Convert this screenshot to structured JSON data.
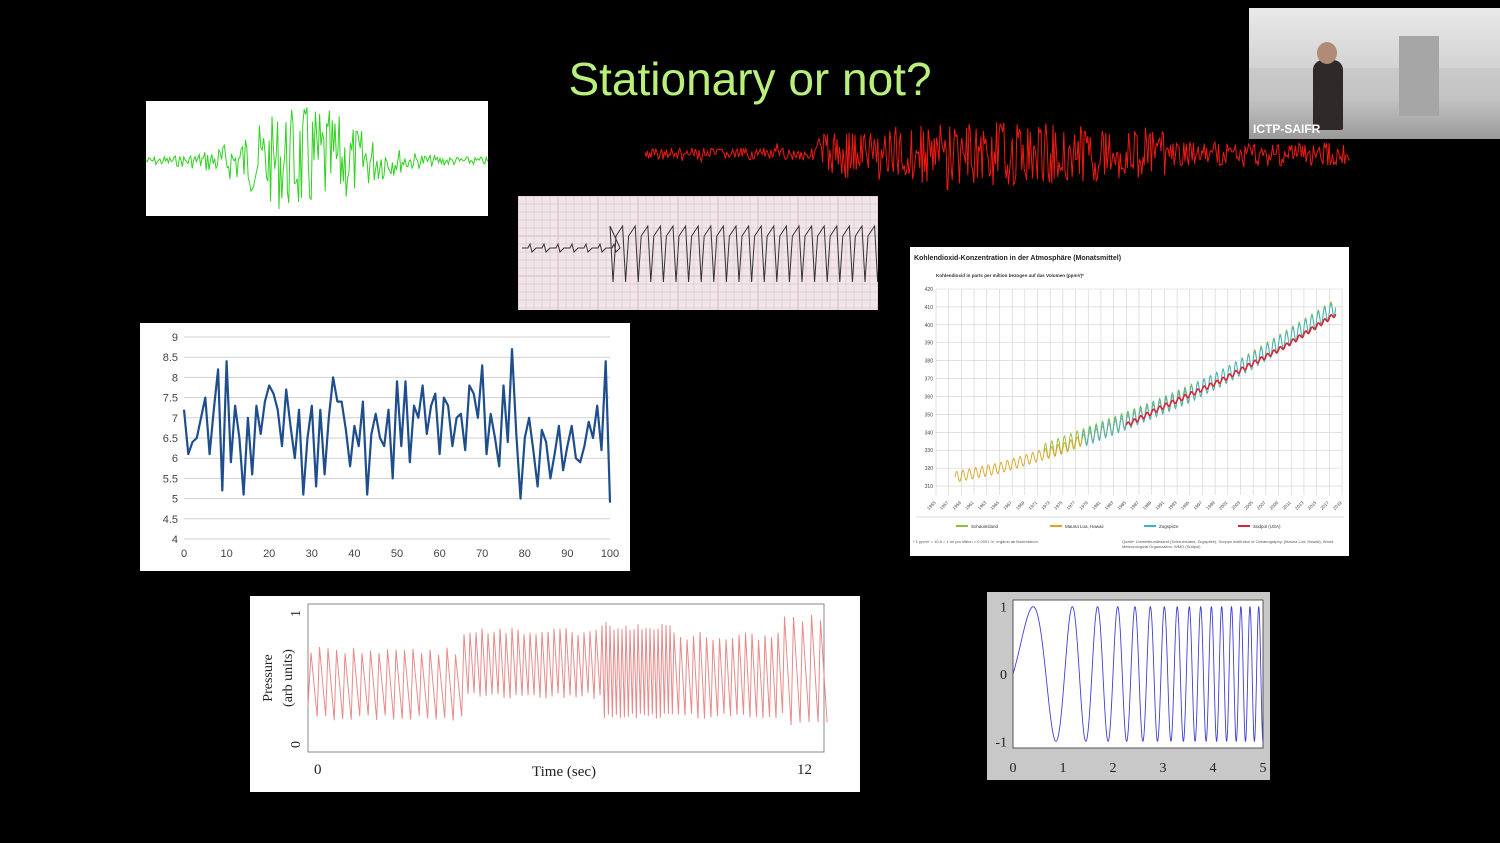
{
  "slide": {
    "title": "Stationary or not?"
  },
  "webcam": {
    "label": "ICTP-SAIFR"
  },
  "co2_chart": {
    "title": "Kohlendioxid-Konzentration in der Atmosphäre (Monatsmittel)",
    "subtitle": "Kohlendioxid in parts per million bezogen auf das Volumen (ppmV)*",
    "legend": [
      "Schauinsland",
      "Mauna Loa, Hawaii",
      "Zugspitze",
      "Südpol (USA)"
    ],
    "footnote": "* 1 ppmV = 10-6 = 1 ml pro Millon = 0,0001 %, ergänzt ab Bodenstrom",
    "source": "Quelle: Umweltbundesamt (Schauinsland, Zugspitze), Scripps Institution of Oceanography, (Mauna Loa, Hawaii), World Meteorological Organization, WMO (Südpol)"
  },
  "chart_data": [
    {
      "type": "line",
      "title": "",
      "x_ticks": [
        "0",
        "10",
        "20",
        "30",
        "40",
        "50",
        "60",
        "70",
        "80",
        "90",
        "100"
      ],
      "y_ticks": [
        "4",
        "4.5",
        "5",
        "5.5",
        "6",
        "6.5",
        "7",
        "7.5",
        "8",
        "8.5",
        "9"
      ],
      "xlim": [
        0,
        100
      ],
      "ylim": [
        4,
        9
      ],
      "series": [
        {
          "color": "#1f4e8c",
          "x": [
            0,
            1,
            2,
            3,
            4,
            5,
            6,
            7,
            8,
            9,
            10,
            11,
            12,
            13,
            14,
            15,
            16,
            17,
            18,
            19,
            20,
            21,
            22,
            23,
            24,
            25,
            26,
            27,
            28,
            29,
            30,
            31,
            32,
            33,
            34,
            35,
            36,
            37,
            38,
            39,
            40,
            41,
            42,
            43,
            44,
            45,
            46,
            47,
            48,
            49,
            50,
            51,
            52,
            53,
            54,
            55,
            56,
            57,
            58,
            59,
            60,
            61,
            62,
            63,
            64,
            65,
            66,
            67,
            68,
            69,
            70,
            71,
            72,
            73,
            74,
            75,
            76,
            77,
            78,
            79,
            80,
            81,
            82,
            83,
            84,
            85,
            86,
            87,
            88,
            89,
            90,
            91,
            92,
            93,
            94,
            95,
            96,
            97,
            98,
            99,
            100
          ],
          "y": [
            7.2,
            6.1,
            6.4,
            6.5,
            7.0,
            7.5,
            6.1,
            7.2,
            8.2,
            5.2,
            8.4,
            5.9,
            7.3,
            6.5,
            5.1,
            7.0,
            5.6,
            7.3,
            6.6,
            7.4,
            7.8,
            7.6,
            7.2,
            6.3,
            7.7,
            6.8,
            6.0,
            7.2,
            5.1,
            6.5,
            7.3,
            5.3,
            7.2,
            5.6,
            7.0,
            8.0,
            7.4,
            7.4,
            6.7,
            5.8,
            6.8,
            6.3,
            7.4,
            5.1,
            6.6,
            7.1,
            6.5,
            6.3,
            7.2,
            5.5,
            7.9,
            6.3,
            7.9,
            5.9,
            7.3,
            7.0,
            7.8,
            6.6,
            7.3,
            7.6,
            6.1,
            7.5,
            7.3,
            6.3,
            7.0,
            7.1,
            6.2,
            7.8,
            7.6,
            7.0,
            8.3,
            6.1,
            7.1,
            6.5,
            5.8,
            7.8,
            6.4,
            8.7,
            6.6,
            5.0,
            6.5,
            7.0,
            6.2,
            5.3,
            6.7,
            6.4,
            5.5,
            6.1,
            6.8,
            5.7,
            6.3,
            6.8,
            6.0,
            5.9,
            6.3,
            6.9,
            6.5,
            7.3,
            6.2,
            8.4,
            4.9
          ]
        }
      ]
    },
    {
      "type": "line",
      "title": "",
      "xlabel": "Time (sec)",
      "ylabel": "Pressure (arb units)",
      "x_ticks": [
        "0",
        "12"
      ],
      "y_ticks": [
        "0",
        "1"
      ],
      "xlim": [
        0,
        12
      ],
      "ylim": [
        0,
        1
      ]
    },
    {
      "type": "line",
      "title": "",
      "x_ticks": [
        "0",
        "1",
        "2",
        "3",
        "4",
        "5"
      ],
      "y_ticks": [
        "-1",
        "0",
        "1"
      ],
      "xlim": [
        0,
        5
      ],
      "ylim": [
        -1.1,
        1.1
      ]
    },
    {
      "type": "line",
      "title": "Kohlendioxid-Konzentration in der Atmosphäre (Monatsmittel)",
      "ylabel": "Kohlendioxid in parts per million bezogen auf das Volumen (ppmV)*",
      "y_ticks": [
        "310",
        "320",
        "330",
        "340",
        "350",
        "360",
        "370",
        "380",
        "390",
        "400",
        "410",
        "420"
      ],
      "x_ticks": [
        "1955",
        "1957",
        "1959",
        "1961",
        "1963",
        "1965",
        "1967",
        "1969",
        "1971",
        "1973",
        "1975",
        "1977",
        "1979",
        "1981",
        "1983",
        "1985",
        "1987",
        "1989",
        "1991",
        "1993",
        "1995",
        "1997",
        "1999",
        "2001",
        "2003",
        "2005",
        "2007",
        "2009",
        "2011",
        "2013",
        "2015",
        "2017",
        "2019"
      ],
      "xlim": [
        1955,
        2019
      ],
      "ylim": [
        305,
        420
      ],
      "series": [
        {
          "name": "Schauinsland",
          "color": "#8fbf3a",
          "x": [
            1972,
            1980,
            1990,
            2000,
            2010,
            2018
          ],
          "y": [
            329,
            340,
            354,
            370,
            392,
            410
          ]
        },
        {
          "name": "Mauna Loa, Hawaii",
          "color": "#d9a521",
          "x": [
            1958,
            1965,
            1975,
            1985,
            1995
          ],
          "y": [
            315,
            320,
            331,
            346,
            361
          ]
        },
        {
          "name": "Zugspitze",
          "color": "#3bb3c9",
          "x": [
            1978,
            1985,
            1995,
            2005,
            2018
          ],
          "y": [
            336,
            346,
            361,
            380,
            409
          ]
        },
        {
          "name": "Südpol (USA)",
          "color": "#d8233a",
          "x": [
            1985,
            1990,
            2000,
            2010,
            2018
          ],
          "y": [
            344,
            353,
            369,
            388,
            406
          ]
        }
      ]
    }
  ]
}
